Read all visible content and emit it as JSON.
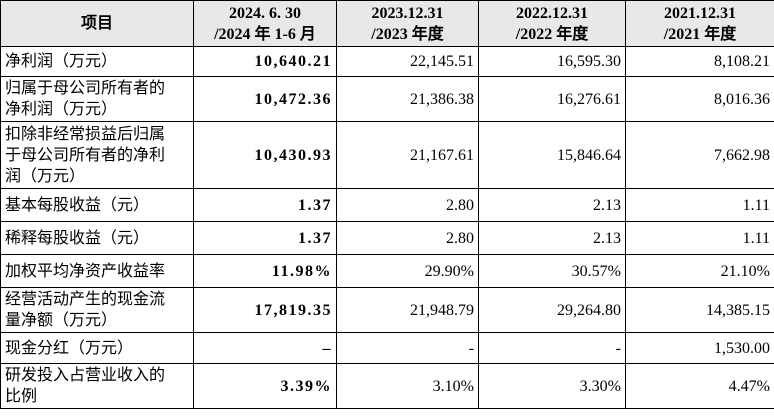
{
  "table": {
    "header": [
      [
        "项目"
      ],
      [
        "2024. 6. 30",
        "/2024 年 1-6 月"
      ],
      [
        "2023.12.31",
        "/2023 年度"
      ],
      [
        "2022.12.31",
        "/2022 年度"
      ],
      [
        "2021.12.31",
        "/2021 年度"
      ]
    ],
    "rows": [
      {
        "label": [
          "净利润（万元）"
        ],
        "values": [
          "10,640.21",
          "22,145.51",
          "16,595.30",
          "8,108.21"
        ]
      },
      {
        "label": [
          "归属于母公司所有者的",
          "净利润（万元）"
        ],
        "values": [
          "10,472.36",
          "21,386.38",
          "16,276.61",
          "8,016.36"
        ]
      },
      {
        "label": [
          "扣除非经常损益后归属",
          "于母公司所有者的净利",
          "润（万元）"
        ],
        "values": [
          "10,430.93",
          "21,167.61",
          "15,846.64",
          "7,662.98"
        ]
      },
      {
        "label": [
          "基本每股收益（元）"
        ],
        "values": [
          "1.37",
          "2.80",
          "2.13",
          "1.11"
        ]
      },
      {
        "label": [
          "稀释每股收益（元）"
        ],
        "values": [
          "1.37",
          "2.80",
          "2.13",
          "1.11"
        ]
      },
      {
        "label": [
          "加权平均净资产收益率"
        ],
        "values": [
          "11.98%",
          "29.90%",
          "30.57%",
          "21.10%"
        ]
      },
      {
        "label": [
          "经营活动产生的现金流",
          "量净额（万元）"
        ],
        "values": [
          "17,819.35",
          "21,948.79",
          "29,264.80",
          "14,385.15"
        ]
      },
      {
        "label": [
          "现金分红（万元）"
        ],
        "values": [
          "–",
          "-",
          "-",
          "1,530.00"
        ]
      },
      {
        "label": [
          "研发投入占营业收入的",
          "比例"
        ],
        "values": [
          "3.39%",
          "3.10%",
          "3.30%",
          "4.47%"
        ]
      }
    ]
  }
}
